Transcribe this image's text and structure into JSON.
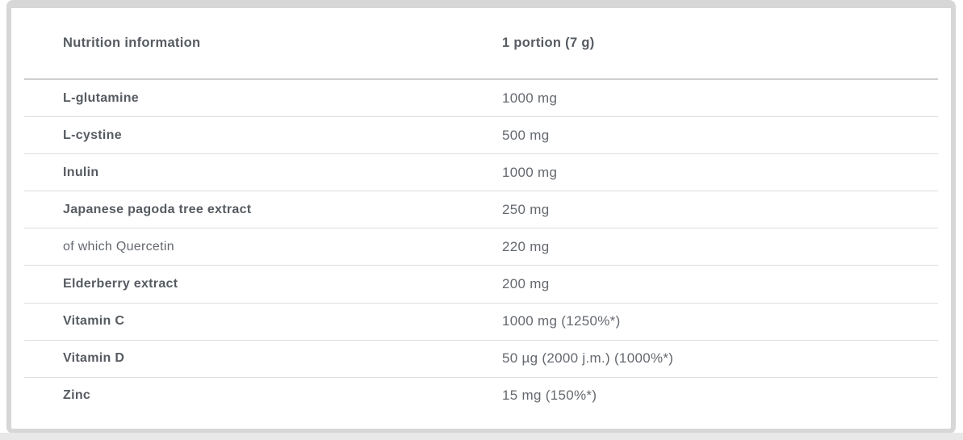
{
  "page": {
    "background": "#ffffff"
  },
  "colors": {
    "card_border": "#d7d7d7",
    "header_divider": "#cfcfcf",
    "row_divider": "#dedede",
    "label_text": "#565b61",
    "value_text": "#64696f",
    "bottom_strip": "#e8e8e8"
  },
  "table": {
    "header": {
      "label": "Nutrition information",
      "value": "1 portion (7 g)"
    },
    "rows": [
      {
        "label": "L-glutamine",
        "value": "1000 mg",
        "bold": true
      },
      {
        "label": "L-cystine",
        "value": "500 mg",
        "bold": true
      },
      {
        "label": "Inulin",
        "value": "1000 mg",
        "bold": true
      },
      {
        "label": "Japanese pagoda tree extract",
        "value": "250 mg",
        "bold": true
      },
      {
        "label": "of which Quercetin",
        "value": "220 mg",
        "bold": false
      },
      {
        "label": "Elderberry extract",
        "value": "200 mg",
        "bold": true
      },
      {
        "label": "Vitamin C",
        "value": "1000 mg (1250%*)",
        "bold": true
      },
      {
        "label": "Vitamin D",
        "value": "50 µg (2000 j.m.) (1000%*)",
        "bold": true
      },
      {
        "label": "Zinc",
        "value": "15 mg (150%*)",
        "bold": true
      }
    ]
  }
}
